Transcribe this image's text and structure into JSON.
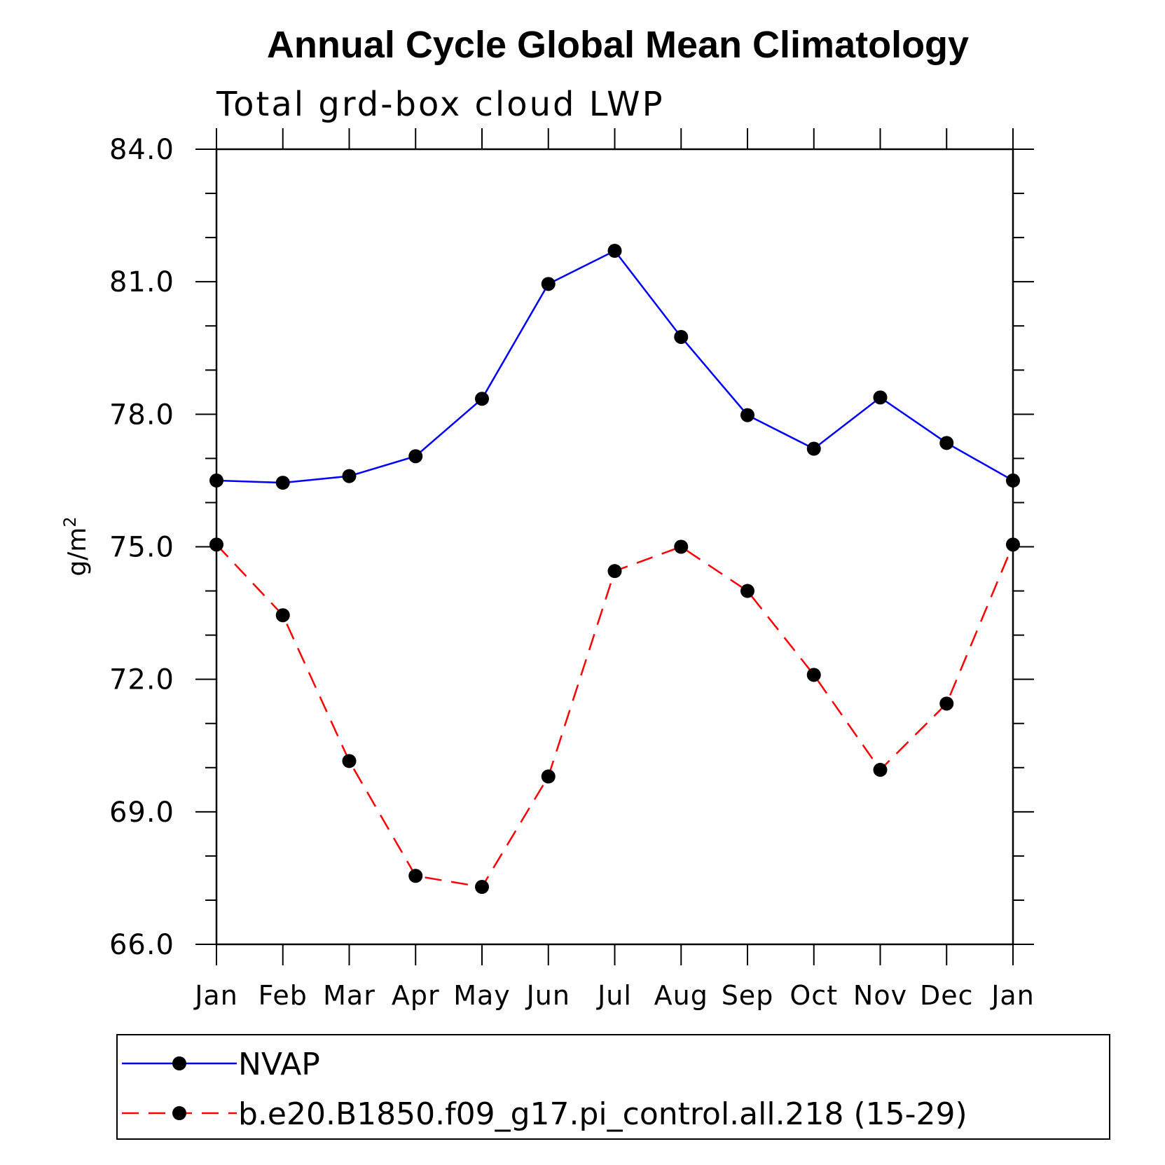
{
  "chart_data": {
    "type": "line",
    "title": "Annual Cycle Global Mean Climatology",
    "subtitle": "Total grd-box cloud LWP",
    "ylabel": "g/m",
    "ylabel_superscript": "2",
    "xlabel": "",
    "categories": [
      "Jan",
      "Feb",
      "Mar",
      "Apr",
      "May",
      "Jun",
      "Jul",
      "Aug",
      "Sep",
      "Oct",
      "Nov",
      "Dec",
      "Jan"
    ],
    "ylim": [
      66.0,
      84.0
    ],
    "yticks": [
      66.0,
      69.0,
      72.0,
      75.0,
      78.0,
      81.0,
      84.0
    ],
    "ytick_labels": [
      "66.0",
      "69.0",
      "72.0",
      "75.0",
      "78.0",
      "81.0",
      "84.0"
    ],
    "y_minor_step": 1.0,
    "grid": false,
    "legend_position": "bottom",
    "series": [
      {
        "name": "NVAP",
        "color": "#0000ff",
        "dash": "solid",
        "values": [
          76.5,
          76.45,
          76.6,
          77.05,
          78.35,
          80.95,
          81.7,
          79.75,
          77.98,
          77.22,
          78.38,
          77.35,
          76.5
        ]
      },
      {
        "name": "b.e20.B1850.f09_g17.pi_control.all.218 (15-29)",
        "color": "#ff0000",
        "dash": "dashed",
        "values": [
          75.05,
          73.45,
          70.15,
          67.55,
          67.3,
          69.8,
          74.45,
          75.0,
          74.0,
          72.1,
          69.95,
          71.45,
          75.05
        ]
      }
    ]
  }
}
